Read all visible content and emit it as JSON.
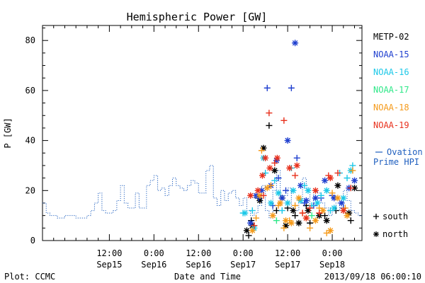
{
  "chart_data": {
    "type": "scatter",
    "title": "Hemispheric Power [GW]",
    "ylabel": "P [GW]",
    "xlabel": "Date and Time",
    "footer_left": "Plot: CCMC",
    "footer_right": "2013/09/18 06:00:10",
    "x_unit": "hours from 2013-09-14 18:00 UT",
    "xlim": [
      0,
      86
    ],
    "ylim": [
      0,
      86
    ],
    "yticks": [
      0,
      20,
      40,
      60,
      80
    ],
    "xticks": [
      {
        "x": 18,
        "line1": "12:00",
        "line2": "Sep15"
      },
      {
        "x": 30,
        "line1": "0:00",
        "line2": "Sep16"
      },
      {
        "x": 42,
        "line1": "12:00",
        "line2": "Sep16"
      },
      {
        "x": 54,
        "line1": "0:00",
        "line2": "Sep17"
      },
      {
        "x": 66,
        "line1": "12:00",
        "line2": "Sep17"
      },
      {
        "x": 78,
        "line1": "0:00",
        "line2": "Sep18"
      }
    ],
    "ovation": {
      "name": "Ovation Prime HPI",
      "color": "#1f5fbf",
      "x": [
        0,
        1,
        2,
        3,
        4,
        5,
        6,
        7,
        8,
        9,
        10,
        11,
        12,
        13,
        14,
        15,
        16,
        17,
        18,
        19,
        20,
        21,
        22,
        23,
        24,
        25,
        26,
        27,
        28,
        29,
        30,
        31,
        32,
        33,
        34,
        35,
        36,
        37,
        38,
        39,
        40,
        41,
        42,
        43,
        44,
        45,
        46,
        47,
        48,
        49,
        50,
        51,
        52,
        53,
        54,
        55,
        56,
        57,
        58,
        59,
        60,
        61,
        62,
        63,
        64,
        65,
        66,
        67,
        68,
        69,
        70,
        71,
        72,
        73,
        74,
        75,
        76,
        77,
        78,
        79,
        80,
        81,
        82,
        83,
        84,
        85,
        86
      ],
      "y": [
        15,
        11,
        10,
        10,
        9,
        9,
        10,
        10,
        10,
        9,
        9,
        9,
        10,
        12,
        15,
        19,
        12,
        11,
        11,
        12,
        16,
        22,
        15,
        13,
        13,
        19,
        13,
        13,
        22,
        24,
        26,
        20,
        21,
        18,
        22,
        25,
        22,
        21,
        20,
        22,
        24,
        23,
        19,
        19,
        28,
        30,
        17,
        14,
        20,
        16,
        19,
        20,
        17,
        14,
        17,
        12,
        10,
        11,
        14,
        22,
        12,
        9,
        20,
        28,
        18,
        18,
        21,
        12,
        12,
        16,
        25,
        21,
        14,
        20,
        19,
        15,
        13,
        10,
        12,
        15,
        12,
        20,
        16,
        12,
        11,
        10,
        10
      ]
    },
    "legend": [
      {
        "name": "METP-02",
        "color": "#000000"
      },
      {
        "name": "NOAA-15",
        "color": "#1f3fcf"
      },
      {
        "name": "NOAA-16",
        "color": "#1cc8e8"
      },
      {
        "name": "NOAA-17",
        "color": "#2ee888"
      },
      {
        "name": "NOAA-18",
        "color": "#f59a1a"
      },
      {
        "name": "NOAA-19",
        "color": "#e8301c"
      }
    ],
    "markers_legend": [
      {
        "symbol": "+",
        "label": "south"
      },
      {
        "symbol": "*",
        "label": "north"
      }
    ],
    "series": [
      {
        "name": "METP-02",
        "color": "#000000",
        "south": [
          [
            55.5,
            2
          ],
          [
            56.2,
            8
          ],
          [
            58,
            17
          ],
          [
            61,
            46
          ],
          [
            63,
            12
          ],
          [
            66,
            13
          ],
          [
            68,
            10
          ],
          [
            71,
            14
          ],
          [
            72,
            7
          ],
          [
            76,
            10
          ],
          [
            79,
            12
          ],
          [
            83,
            8
          ]
        ],
        "north": [
          [
            55,
            4
          ],
          [
            56.5,
            6
          ],
          [
            58.5,
            16
          ],
          [
            59.5,
            37
          ],
          [
            62.5,
            28
          ],
          [
            64.5,
            17
          ],
          [
            65.5,
            6
          ],
          [
            67.5,
            12
          ],
          [
            69,
            7
          ],
          [
            71.5,
            12
          ],
          [
            74.5,
            10
          ],
          [
            76.5,
            8
          ],
          [
            79.5,
            22
          ],
          [
            82.5,
            11
          ],
          [
            84,
            21
          ]
        ]
      },
      {
        "name": "NOAA-15",
        "color": "#1f3fcf",
        "south": [
          [
            58.2,
            17
          ],
          [
            60.5,
            61
          ],
          [
            62,
            14
          ],
          [
            63.5,
            25
          ],
          [
            65.5,
            20
          ],
          [
            67,
            61
          ],
          [
            68.5,
            33
          ],
          [
            70.5,
            15
          ],
          [
            73,
            14
          ],
          [
            75,
            17
          ],
          [
            78,
            18
          ],
          [
            81,
            13
          ]
        ],
        "north": [
          [
            56,
            7
          ],
          [
            57.5,
            18
          ],
          [
            59,
            20
          ],
          [
            61.5,
            22
          ],
          [
            63,
            32
          ],
          [
            64.5,
            17
          ],
          [
            66,
            40
          ],
          [
            68,
            79
          ],
          [
            69.5,
            22
          ],
          [
            71,
            16
          ],
          [
            73.5,
            17
          ],
          [
            76,
            24
          ],
          [
            78.5,
            17
          ],
          [
            80.5,
            15
          ],
          [
            82.5,
            21
          ],
          [
            84,
            24
          ]
        ]
      },
      {
        "name": "NOAA-16",
        "color": "#1cc8e8",
        "south": [
          [
            54,
            11
          ],
          [
            56.5,
            12
          ],
          [
            60,
            27
          ],
          [
            62.5,
            24
          ],
          [
            64.5,
            12
          ],
          [
            67,
            29
          ],
          [
            70.5,
            22
          ],
          [
            72.5,
            14
          ],
          [
            75,
            18
          ],
          [
            77.5,
            12
          ],
          [
            80,
            27
          ],
          [
            82,
            25
          ],
          [
            83.5,
            30
          ]
        ],
        "north": [
          [
            54.5,
            11
          ],
          [
            57,
            5
          ],
          [
            59.5,
            33
          ],
          [
            61.5,
            15
          ],
          [
            63.5,
            19
          ],
          [
            66,
            15
          ],
          [
            67.5,
            20
          ],
          [
            69.5,
            16
          ],
          [
            71.5,
            20
          ],
          [
            74,
            15
          ],
          [
            76.5,
            20
          ],
          [
            78.5,
            13
          ],
          [
            81,
            17
          ],
          [
            83,
            28
          ]
        ]
      },
      {
        "name": "NOAA-17",
        "color": "#2ee888",
        "south": [
          [
            63,
            8
          ],
          [
            72.5,
            10
          ]
        ],
        "north": []
      },
      {
        "name": "NOAA-18",
        "color": "#f59a1a",
        "south": [
          [
            57.5,
            9
          ],
          [
            59,
            36
          ],
          [
            61.5,
            22
          ],
          [
            63.5,
            14
          ],
          [
            65,
            5
          ],
          [
            66.5,
            8
          ],
          [
            68,
            14
          ],
          [
            70,
            11
          ],
          [
            72,
            5
          ],
          [
            74.5,
            13
          ],
          [
            76.5,
            3
          ],
          [
            78,
            19
          ],
          [
            81.5,
            13
          ],
          [
            83.5,
            28
          ]
        ],
        "north": [
          [
            56.5,
            4
          ],
          [
            58.5,
            18
          ],
          [
            60.5,
            21
          ],
          [
            62,
            10
          ],
          [
            64,
            15
          ],
          [
            65.5,
            8
          ],
          [
            67,
            7
          ],
          [
            69,
            17
          ],
          [
            71,
            9
          ],
          [
            73.5,
            8
          ],
          [
            75.5,
            12
          ],
          [
            77.5,
            4
          ],
          [
            79.5,
            17
          ],
          [
            82,
            10
          ]
        ]
      },
      {
        "name": "NOAA-19",
        "color": "#e8301c",
        "south": [
          [
            57,
            6
          ],
          [
            59.5,
            18
          ],
          [
            61,
            51
          ],
          [
            62.5,
            31
          ],
          [
            65,
            48
          ],
          [
            68,
            26
          ],
          [
            70,
            11
          ],
          [
            72,
            13
          ],
          [
            74.5,
            11
          ],
          [
            77,
            26
          ],
          [
            79.5,
            27
          ],
          [
            83,
            21
          ]
        ],
        "north": [
          [
            56,
            18
          ],
          [
            58,
            20
          ],
          [
            59.2,
            26
          ],
          [
            60,
            33
          ],
          [
            61.2,
            29
          ],
          [
            63.2,
            33
          ],
          [
            66.5,
            29
          ],
          [
            68.5,
            30
          ],
          [
            71,
            9
          ],
          [
            73.5,
            20
          ],
          [
            77.5,
            25
          ],
          [
            81,
            12
          ]
        ]
      }
    ]
  }
}
